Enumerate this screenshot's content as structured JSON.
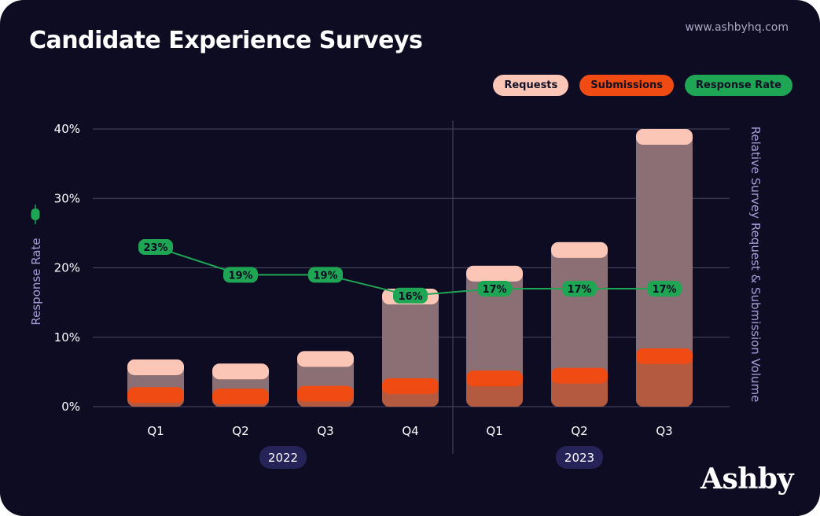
{
  "header": {
    "title": "Candidate Experience Surveys",
    "site": "www.ashbyhq.com",
    "brand": "Ashby"
  },
  "legend": [
    {
      "label": "Requests",
      "color": "#fcc6b6"
    },
    {
      "label": "Submissions",
      "color": "#f14b14"
    },
    {
      "label": "Response Rate",
      "color": "#1fa654"
    }
  ],
  "colors": {
    "background": "#0e0c23",
    "bar_body": "#8a6f74",
    "requests": "#fcc6b6",
    "submissions": "#f14b14",
    "submissions_body": "#b35a40",
    "line": "#1fa654",
    "grid": "#4b4a63",
    "year_chip": "#262359"
  },
  "chart_data": {
    "type": "bar",
    "title": "Candidate Experience Surveys",
    "ylabel_left": "Response Rate",
    "ylabel_right": "Relative Survey Request & Submission Volume",
    "ylim": [
      0,
      40
    ],
    "y_ticks": [
      "0%",
      "10%",
      "20%",
      "30%",
      "40%"
    ],
    "categories": [
      "Q1",
      "Q2",
      "Q3",
      "Q4",
      "Q1",
      "Q2",
      "Q3"
    ],
    "groups": [
      {
        "label": "2022",
        "count": 4
      },
      {
        "label": "2023",
        "count": 3
      }
    ],
    "series": [
      {
        "name": "Requests",
        "type": "bar",
        "values": [
          6.8,
          6.2,
          8.0,
          17.0,
          20.3,
          23.7,
          40.0
        ]
      },
      {
        "name": "Submissions",
        "type": "bar",
        "values": [
          2.8,
          2.6,
          3.0,
          4.1,
          5.2,
          5.6,
          8.4
        ]
      },
      {
        "name": "Response Rate",
        "type": "line",
        "values": [
          23,
          19,
          19,
          16,
          17,
          17,
          17
        ],
        "labels": [
          "23%",
          "19%",
          "19%",
          "16%",
          "17%",
          "17%",
          "17%"
        ]
      }
    ],
    "grid": true,
    "legend_position": "top-right"
  }
}
